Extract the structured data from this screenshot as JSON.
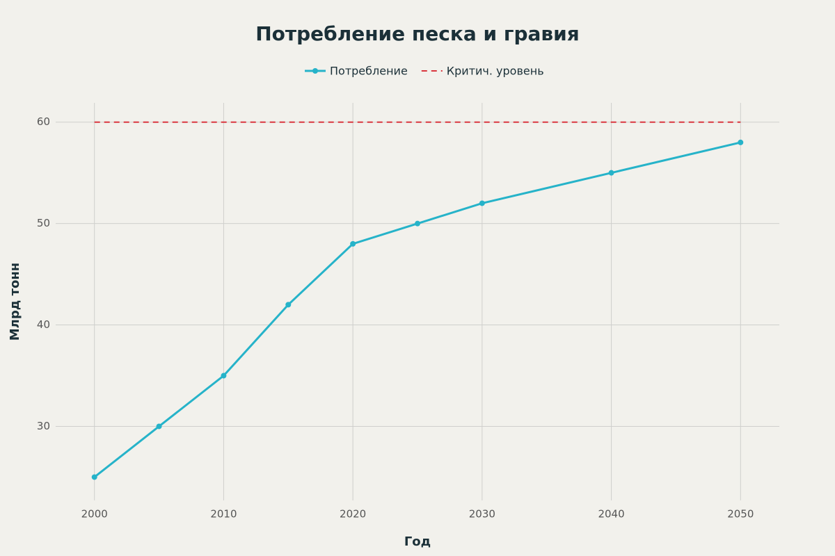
{
  "chart_data": {
    "type": "line",
    "title": "Потребление песка и гравия",
    "x_label": "Год",
    "y_label": "Млрд тонн",
    "x": [
      2000,
      2005,
      2010,
      2015,
      2020,
      2025,
      2030,
      2040,
      2050
    ],
    "series": [
      {
        "name": "Потребление",
        "color": "#26b3c9",
        "values": [
          25,
          30,
          35,
          42,
          48,
          50,
          52,
          55,
          58
        ],
        "markers": true,
        "dash": false
      },
      {
        "name": "Критич. уровень",
        "color": "#d9363e",
        "values": [
          60,
          60,
          60,
          60,
          60,
          60,
          60,
          60,
          60
        ],
        "markers": false,
        "dash": true
      }
    ],
    "xlim": [
      1997,
      2053
    ],
    "ylim": [
      22.7,
      61.9
    ],
    "xticks": [
      2000,
      2010,
      2020,
      2030,
      2040,
      2050
    ],
    "yticks": [
      30,
      40,
      50,
      60
    ],
    "grid": true,
    "legend": "top"
  }
}
